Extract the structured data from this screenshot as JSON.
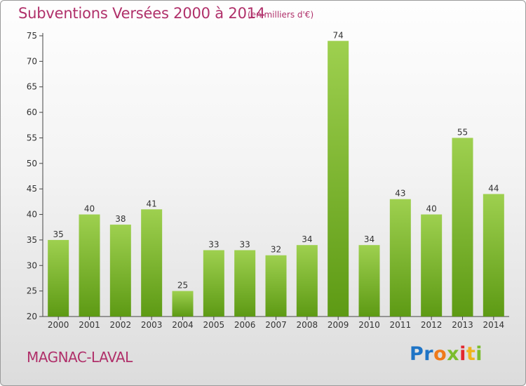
{
  "header": {
    "title": "Subventions Versées 2000 à 2014",
    "unit_note": "(en milliers d'€)"
  },
  "footer": {
    "commune": "MAGNAC-LAVAL",
    "brand": [
      "Pr",
      "o",
      "x",
      "i",
      "t",
      "i"
    ]
  },
  "colors": {
    "accent": "#b0306a",
    "bar_top": "#9ed04f",
    "bar_bottom": "#5d9a14"
  },
  "chart_data": {
    "type": "bar",
    "categories": [
      "2000",
      "2001",
      "2002",
      "2003",
      "2004",
      "2005",
      "2006",
      "2007",
      "2008",
      "2009",
      "2010",
      "2011",
      "2012",
      "2013",
      "2014"
    ],
    "values": [
      35,
      40,
      38,
      41,
      25,
      33,
      33,
      32,
      34,
      74,
      34,
      43,
      40,
      55,
      44
    ],
    "ylim": [
      20,
      75
    ],
    "yticks": [
      20,
      25,
      30,
      35,
      40,
      45,
      50,
      55,
      60,
      65,
      70,
      75
    ],
    "grid": false,
    "legend": "none",
    "data_labels": true
  }
}
